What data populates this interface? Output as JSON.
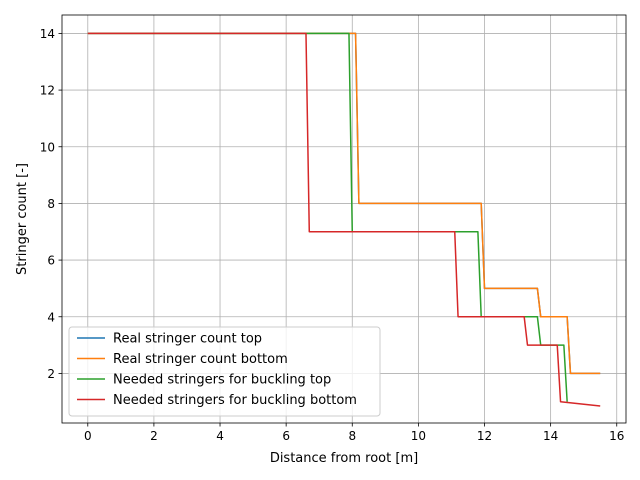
{
  "chart_data": {
    "type": "line",
    "xlabel": "Distance from root [m]",
    "ylabel": "Stringer count [-]",
    "xlim": [
      -0.78,
      16.28
    ],
    "ylim": [
      0.25,
      14.65
    ],
    "xticks": [
      0,
      2,
      4,
      6,
      8,
      10,
      12,
      14,
      16
    ],
    "yticks": [
      2,
      4,
      6,
      8,
      10,
      12,
      14
    ],
    "grid": true,
    "legend_position": "lower-left",
    "series": [
      {
        "name": "Real stringer count top",
        "color": "#1f77b4",
        "x": [
          0,
          8.1,
          8.2,
          11.9,
          12.0,
          13.6,
          13.7,
          14.5,
          14.6,
          15.5
        ],
        "y": [
          14,
          14,
          8,
          8,
          5,
          5,
          4,
          4,
          2,
          2
        ]
      },
      {
        "name": "Real stringer count bottom",
        "color": "#ff7f0e",
        "x": [
          0,
          8.1,
          8.2,
          11.9,
          12.0,
          13.6,
          13.7,
          14.5,
          14.6,
          15.5
        ],
        "y": [
          14,
          14,
          8,
          8,
          5,
          5,
          4,
          4,
          2,
          2
        ]
      },
      {
        "name": "Needed stringers for buckling top",
        "color": "#2ca02c",
        "x": [
          0,
          7.9,
          8.0,
          11.8,
          11.9,
          13.6,
          13.7,
          14.4,
          14.5
        ],
        "y": [
          14,
          14,
          7,
          7,
          4,
          4,
          3,
          3,
          1
        ]
      },
      {
        "name": "Needed stringers for buckling bottom",
        "color": "#d62728",
        "x": [
          0,
          6.6,
          6.7,
          11.1,
          11.2,
          13.2,
          13.3,
          14.2,
          14.3,
          15.5
        ],
        "y": [
          14,
          14,
          7,
          7,
          4,
          4,
          3,
          3,
          1,
          0.85
        ]
      }
    ]
  }
}
